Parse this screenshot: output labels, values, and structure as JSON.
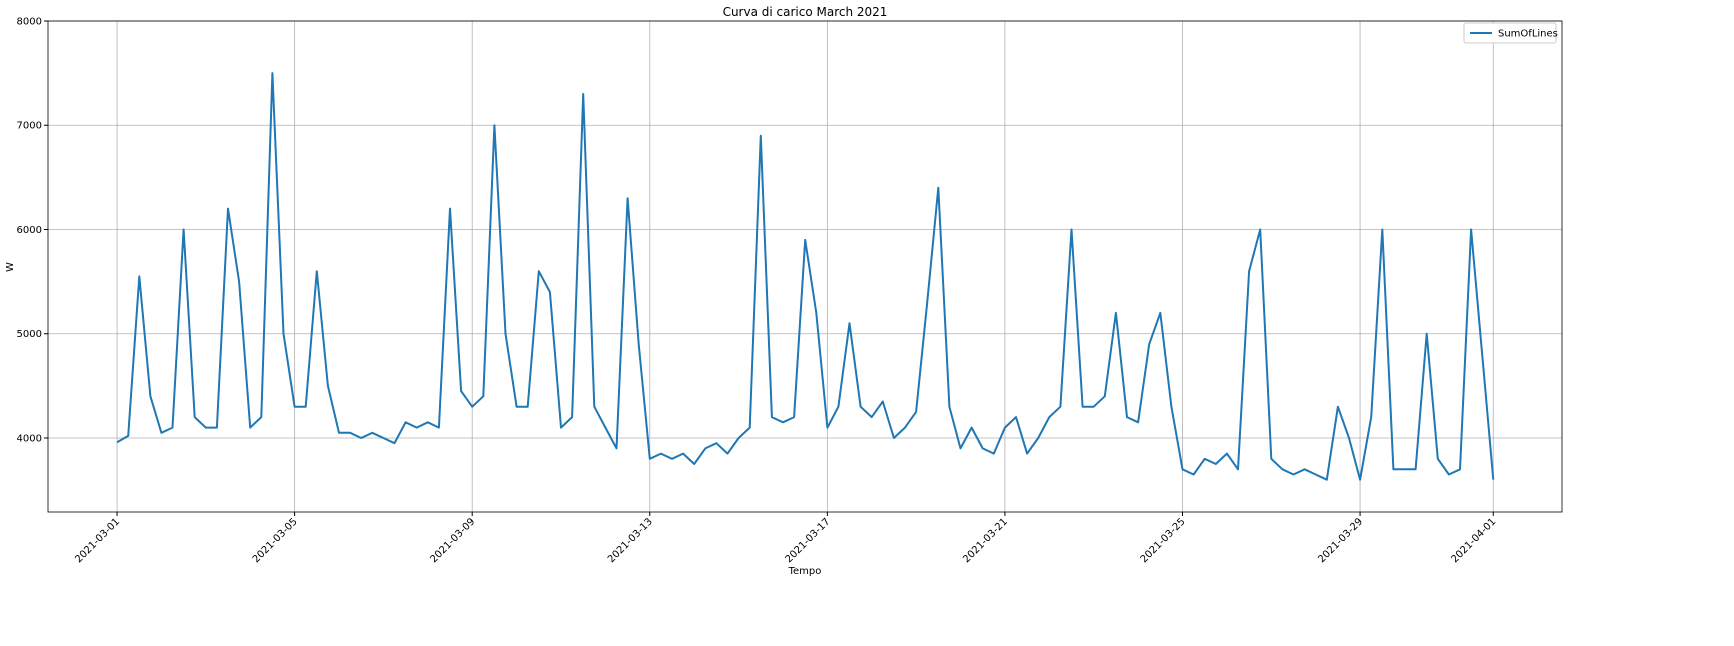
{
  "chart_data": {
    "type": "line",
    "title": "Curva di carico March 2021",
    "x_label": "Tempo",
    "y_label": "W",
    "x": [
      "2021-03-01 00:00",
      "2021-03-01 06:00",
      "2021-03-01 12:00",
      "2021-03-01 18:00",
      "2021-03-02 00:00",
      "2021-03-02 06:00",
      "2021-03-02 12:00",
      "2021-03-02 18:00",
      "2021-03-03 00:00",
      "2021-03-03 06:00",
      "2021-03-03 12:00",
      "2021-03-03 18:00",
      "2021-03-04 00:00",
      "2021-03-04 06:00",
      "2021-03-04 12:00",
      "2021-03-04 18:00",
      "2021-03-05 00:00",
      "2021-03-05 06:00",
      "2021-03-05 12:00",
      "2021-03-05 18:00",
      "2021-03-06 00:00",
      "2021-03-06 06:00",
      "2021-03-06 12:00",
      "2021-03-06 18:00",
      "2021-03-07 00:00",
      "2021-03-07 06:00",
      "2021-03-07 12:00",
      "2021-03-07 18:00",
      "2021-03-08 00:00",
      "2021-03-08 06:00",
      "2021-03-08 12:00",
      "2021-03-08 18:00",
      "2021-03-09 00:00",
      "2021-03-09 06:00",
      "2021-03-09 12:00",
      "2021-03-09 18:00",
      "2021-03-10 00:00",
      "2021-03-10 06:00",
      "2021-03-10 12:00",
      "2021-03-10 18:00",
      "2021-03-11 00:00",
      "2021-03-11 06:00",
      "2021-03-11 12:00",
      "2021-03-11 18:00",
      "2021-03-12 00:00",
      "2021-03-12 06:00",
      "2021-03-12 12:00",
      "2021-03-12 18:00",
      "2021-03-13 00:00",
      "2021-03-13 06:00",
      "2021-03-13 12:00",
      "2021-03-13 18:00",
      "2021-03-14 00:00",
      "2021-03-14 06:00",
      "2021-03-14 12:00",
      "2021-03-14 18:00",
      "2021-03-15 00:00",
      "2021-03-15 06:00",
      "2021-03-15 12:00",
      "2021-03-15 18:00",
      "2021-03-16 00:00",
      "2021-03-16 06:00",
      "2021-03-16 12:00",
      "2021-03-16 18:00",
      "2021-03-17 00:00",
      "2021-03-17 06:00",
      "2021-03-17 12:00",
      "2021-03-17 18:00",
      "2021-03-18 00:00",
      "2021-03-18 06:00",
      "2021-03-18 12:00",
      "2021-03-18 18:00",
      "2021-03-19 00:00",
      "2021-03-19 06:00",
      "2021-03-19 12:00",
      "2021-03-19 18:00",
      "2021-03-20 00:00",
      "2021-03-20 06:00",
      "2021-03-20 12:00",
      "2021-03-20 18:00",
      "2021-03-21 00:00",
      "2021-03-21 06:00",
      "2021-03-21 12:00",
      "2021-03-21 18:00",
      "2021-03-22 00:00",
      "2021-03-22 06:00",
      "2021-03-22 12:00",
      "2021-03-22 18:00",
      "2021-03-23 00:00",
      "2021-03-23 06:00",
      "2021-03-23 12:00",
      "2021-03-23 18:00",
      "2021-03-24 00:00",
      "2021-03-24 06:00",
      "2021-03-24 12:00",
      "2021-03-24 18:00",
      "2021-03-25 00:00",
      "2021-03-25 06:00",
      "2021-03-25 12:00",
      "2021-03-25 18:00",
      "2021-03-26 00:00",
      "2021-03-26 06:00",
      "2021-03-26 12:00",
      "2021-03-26 18:00",
      "2021-03-27 00:00",
      "2021-03-27 06:00",
      "2021-03-27 12:00",
      "2021-03-27 18:00",
      "2021-03-28 00:00",
      "2021-03-28 06:00",
      "2021-03-28 12:00",
      "2021-03-28 18:00",
      "2021-03-29 00:00",
      "2021-03-29 06:00",
      "2021-03-29 12:00",
      "2021-03-29 18:00",
      "2021-03-30 00:00",
      "2021-03-30 06:00",
      "2021-03-30 12:00",
      "2021-03-30 18:00",
      "2021-03-31 00:00",
      "2021-03-31 06:00",
      "2021-03-31 12:00",
      "2021-03-31 18:00",
      "2021-04-01 00:00"
    ],
    "series": [
      {
        "name": "SumOfLines",
        "color": "#1f77b4",
        "values": [
          3960,
          4020,
          5550,
          4400,
          4050,
          4100,
          6000,
          4200,
          4100,
          4100,
          6200,
          5500,
          4100,
          4200,
          7500,
          5000,
          4300,
          4300,
          5600,
          4500,
          4050,
          4050,
          4000,
          4050,
          4000,
          3950,
          4150,
          4100,
          4150,
          4100,
          6200,
          4450,
          4300,
          4400,
          7000,
          5000,
          4300,
          4300,
          5600,
          5400,
          4100,
          4200,
          7300,
          4300,
          4100,
          3900,
          6300,
          4900,
          3800,
          3850,
          3800,
          3850,
          3750,
          3900,
          3950,
          3850,
          4000,
          4100,
          6900,
          4200,
          4150,
          4200,
          5900,
          5200,
          4100,
          4300,
          5100,
          4300,
          4200,
          4350,
          4000,
          4100,
          4250,
          5300,
          6400,
          4300,
          3900,
          4100,
          3900,
          3850,
          4100,
          4200,
          3850,
          4000,
          4200,
          4300,
          6000,
          4300,
          4300,
          4400,
          5200,
          4200,
          4150,
          4900,
          5200,
          4300,
          3700,
          3650,
          3800,
          3750,
          3850,
          3700,
          5600,
          6000,
          3800,
          3700,
          3650,
          3700,
          3650,
          3600,
          4300,
          4000,
          3600,
          4200,
          6000,
          3700,
          3700,
          3700,
          5000,
          3800,
          3650,
          3700,
          6000,
          4800,
          3600
        ]
      }
    ],
    "xlim": [
      "2021-02-27 10:40",
      "2021-04-02 13:10"
    ],
    "xticks": [
      "2021-03-01",
      "2021-03-05",
      "2021-03-09",
      "2021-03-13",
      "2021-03-17",
      "2021-03-21",
      "2021-03-25",
      "2021-03-29",
      "2021-04-01"
    ],
    "ylim": [
      3290,
      8000
    ],
    "yticks": [
      4000,
      5000,
      6000,
      7000,
      8000
    ],
    "grid": true,
    "legend": "upper right"
  }
}
